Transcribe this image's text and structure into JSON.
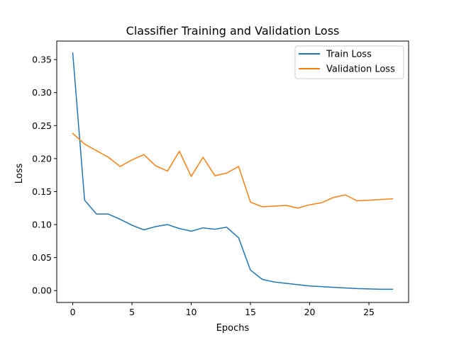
{
  "chart_data": {
    "type": "line",
    "title": "Classifier Training and Validation Loss",
    "xlabel": "Epochs",
    "ylabel": "Loss",
    "xlim": [
      -1.35,
      28.35
    ],
    "ylim": [
      -0.018,
      0.378
    ],
    "xticks": [
      0,
      5,
      10,
      15,
      20,
      25
    ],
    "xtick_labels": [
      "0",
      "5",
      "10",
      "15",
      "20",
      "25"
    ],
    "yticks": [
      0.0,
      0.05,
      0.1,
      0.15,
      0.2,
      0.25,
      0.3,
      0.35
    ],
    "ytick_labels": [
      "0.00",
      "0.05",
      "0.10",
      "0.15",
      "0.20",
      "0.25",
      "0.30",
      "0.35"
    ],
    "grid": false,
    "legend_position": "top-right",
    "x": [
      0,
      1,
      2,
      3,
      4,
      5,
      6,
      7,
      8,
      9,
      10,
      11,
      12,
      13,
      14,
      15,
      16,
      17,
      18,
      19,
      20,
      21,
      22,
      23,
      24,
      25,
      26,
      27
    ],
    "series": [
      {
        "name": "Train Loss",
        "color": "#1f77b4",
        "values": [
          0.36,
          0.137,
          0.116,
          0.116,
          0.108,
          0.099,
          0.092,
          0.097,
          0.1,
          0.094,
          0.09,
          0.095,
          0.093,
          0.096,
          0.08,
          0.031,
          0.017,
          0.013,
          0.011,
          0.009,
          0.007,
          0.006,
          0.005,
          0.004,
          0.003,
          0.0025,
          0.002,
          0.002
        ]
      },
      {
        "name": "Validation Loss",
        "color": "#ff7f0e",
        "values": [
          0.238,
          0.222,
          0.212,
          0.202,
          0.188,
          0.198,
          0.206,
          0.189,
          0.181,
          0.211,
          0.173,
          0.202,
          0.174,
          0.178,
          0.188,
          0.134,
          0.127,
          0.128,
          0.129,
          0.125,
          0.13,
          0.133,
          0.141,
          0.145,
          0.136,
          0.137,
          0.138,
          0.139
        ]
      }
    ]
  }
}
